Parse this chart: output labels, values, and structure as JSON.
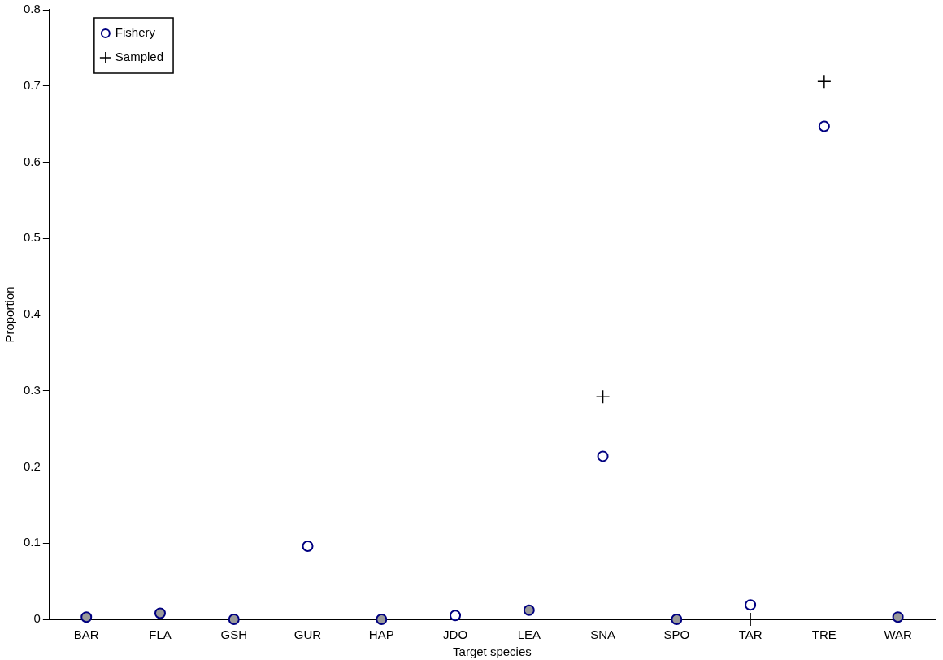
{
  "chart_data": {
    "type": "scatter",
    "xlabel": "Target species",
    "ylabel": "Proportion",
    "categories": [
      "BAR",
      "FLA",
      "GSH",
      "GUR",
      "HAP",
      "JDO",
      "LEA",
      "SNA",
      "SPO",
      "TAR",
      "TRE",
      "WAR"
    ],
    "series": [
      {
        "name": "Fishery",
        "marker": "circle",
        "color": "#000080",
        "colors": [
          "#999999",
          "#999999",
          "#999999",
          "#ffffff",
          "#999999",
          "#ffffff",
          "#999999",
          "#ffffff",
          "#999999",
          "#ffffff",
          "#ffffff",
          "#999999"
        ],
        "values": [
          0.003,
          0.008,
          0,
          0.096,
          0,
          0.005,
          0.012,
          0.214,
          0,
          0.019,
          0.647,
          0.003
        ]
      },
      {
        "name": "Sampled",
        "marker": "cross",
        "color": "#000000",
        "values": [
          null,
          null,
          null,
          null,
          null,
          null,
          null,
          0.292,
          null,
          0,
          0.706,
          null
        ]
      }
    ],
    "ylim": [
      0,
      0.8
    ],
    "yticks": [
      0,
      0.1,
      0.2,
      0.3,
      0.4,
      0.5,
      0.6,
      0.7,
      0.8
    ],
    "grid": false,
    "legend": "top left"
  }
}
